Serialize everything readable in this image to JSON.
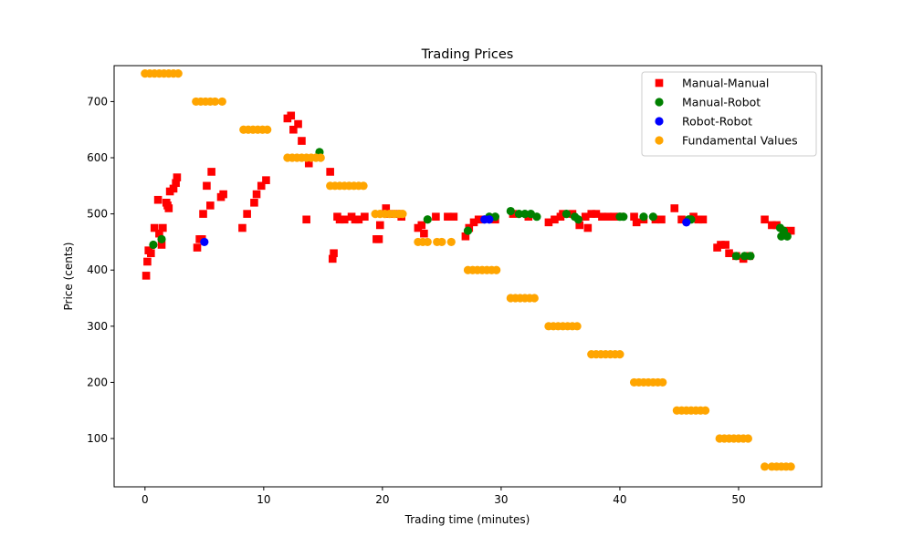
{
  "chart_data": {
    "type": "scatter",
    "title": "Trading Prices",
    "xlabel": "Trading time (minutes)",
    "ylabel": "Price (cents)",
    "xlim": [
      -2.6,
      57.0
    ],
    "ylim": [
      14,
      764
    ],
    "x_ticks": [
      0,
      10,
      20,
      30,
      40,
      50
    ],
    "y_ticks": [
      100,
      200,
      300,
      400,
      500,
      600,
      700
    ],
    "grid": false,
    "legend_position": "top-right",
    "series": [
      {
        "name": "Manual-Manual",
        "marker": "square",
        "color": "#ff0000",
        "points": [
          [
            0.1,
            390
          ],
          [
            0.2,
            415
          ],
          [
            0.3,
            435
          ],
          [
            0.5,
            430
          ],
          [
            0.8,
            475
          ],
          [
            1.1,
            525
          ],
          [
            1.2,
            465
          ],
          [
            1.4,
            445
          ],
          [
            1.5,
            475
          ],
          [
            1.8,
            520
          ],
          [
            1.9,
            515
          ],
          [
            2.0,
            510
          ],
          [
            2.1,
            540
          ],
          [
            2.4,
            545
          ],
          [
            2.6,
            555
          ],
          [
            2.7,
            565
          ],
          [
            4.4,
            440
          ],
          [
            4.6,
            455
          ],
          [
            4.8,
            455
          ],
          [
            4.9,
            500
          ],
          [
            5.2,
            550
          ],
          [
            5.5,
            515
          ],
          [
            5.6,
            575
          ],
          [
            6.4,
            530
          ],
          [
            6.6,
            535
          ],
          [
            8.2,
            475
          ],
          [
            8.6,
            500
          ],
          [
            9.2,
            520
          ],
          [
            9.4,
            535
          ],
          [
            9.8,
            550
          ],
          [
            10.2,
            560
          ],
          [
            12.0,
            670
          ],
          [
            12.3,
            675
          ],
          [
            12.5,
            650
          ],
          [
            12.9,
            660
          ],
          [
            13.2,
            630
          ],
          [
            13.6,
            490
          ],
          [
            13.8,
            590
          ],
          [
            15.6,
            575
          ],
          [
            15.8,
            420
          ],
          [
            15.9,
            430
          ],
          [
            16.2,
            495
          ],
          [
            16.4,
            490
          ],
          [
            16.8,
            490
          ],
          [
            17.4,
            495
          ],
          [
            17.7,
            490
          ],
          [
            18.0,
            490
          ],
          [
            18.5,
            495
          ],
          [
            19.5,
            455
          ],
          [
            19.7,
            455
          ],
          [
            19.8,
            480
          ],
          [
            20.3,
            510
          ],
          [
            20.6,
            500
          ],
          [
            21.3,
            500
          ],
          [
            21.6,
            495
          ],
          [
            23.0,
            475
          ],
          [
            23.3,
            480
          ],
          [
            23.5,
            465
          ],
          [
            24.5,
            495
          ],
          [
            25.5,
            495
          ],
          [
            26.0,
            495
          ],
          [
            27.0,
            460
          ],
          [
            27.3,
            475
          ],
          [
            27.7,
            485
          ],
          [
            28.1,
            490
          ],
          [
            28.3,
            490
          ],
          [
            29.5,
            490
          ],
          [
            31.0,
            500
          ],
          [
            32.3,
            495
          ],
          [
            34.0,
            485
          ],
          [
            34.5,
            490
          ],
          [
            35.0,
            495
          ],
          [
            35.2,
            500
          ],
          [
            36.0,
            500
          ],
          [
            36.6,
            480
          ],
          [
            37.1,
            495
          ],
          [
            37.3,
            475
          ],
          [
            37.6,
            500
          ],
          [
            38.0,
            500
          ],
          [
            38.5,
            495
          ],
          [
            39.0,
            495
          ],
          [
            39.5,
            495
          ],
          [
            40.0,
            495
          ],
          [
            41.2,
            495
          ],
          [
            41.4,
            485
          ],
          [
            42.0,
            490
          ],
          [
            43.0,
            490
          ],
          [
            43.5,
            490
          ],
          [
            44.6,
            510
          ],
          [
            45.2,
            490
          ],
          [
            46.2,
            495
          ],
          [
            46.6,
            490
          ],
          [
            47.0,
            490
          ],
          [
            48.2,
            440
          ],
          [
            48.5,
            445
          ],
          [
            48.9,
            445
          ],
          [
            49.2,
            430
          ],
          [
            49.8,
            425
          ],
          [
            50.4,
            420
          ],
          [
            50.9,
            425
          ],
          [
            52.2,
            490
          ],
          [
            52.8,
            480
          ],
          [
            53.2,
            480
          ],
          [
            53.8,
            470
          ],
          [
            54.4,
            470
          ]
        ]
      },
      {
        "name": "Manual-Robot",
        "marker": "circle",
        "color": "#008000",
        "points": [
          [
            0.7,
            445
          ],
          [
            1.4,
            455
          ],
          [
            14.7,
            610
          ],
          [
            23.8,
            490
          ],
          [
            27.2,
            470
          ],
          [
            29.0,
            495
          ],
          [
            29.5,
            495
          ],
          [
            30.8,
            505
          ],
          [
            31.5,
            500
          ],
          [
            32.0,
            500
          ],
          [
            32.5,
            500
          ],
          [
            33.0,
            495
          ],
          [
            35.5,
            500
          ],
          [
            36.2,
            495
          ],
          [
            36.5,
            490
          ],
          [
            40.0,
            495
          ],
          [
            40.3,
            495
          ],
          [
            42.0,
            495
          ],
          [
            42.8,
            495
          ],
          [
            45.8,
            490
          ],
          [
            46.0,
            490
          ],
          [
            49.8,
            425
          ],
          [
            50.5,
            425
          ],
          [
            51.0,
            425
          ],
          [
            53.5,
            475
          ],
          [
            53.6,
            460
          ],
          [
            53.8,
            470
          ],
          [
            54.1,
            460
          ]
        ]
      },
      {
        "name": "Robot-Robot",
        "marker": "circle",
        "color": "#0000ff",
        "points": [
          [
            5.0,
            450
          ],
          [
            28.6,
            490
          ],
          [
            29.0,
            490
          ],
          [
            45.6,
            485
          ]
        ]
      },
      {
        "name": "Fundamental Values",
        "marker": "circle",
        "color": "#ffa500",
        "points": [
          [
            0.0,
            750
          ],
          [
            0.4,
            750
          ],
          [
            0.8,
            750
          ],
          [
            1.2,
            750
          ],
          [
            1.6,
            750
          ],
          [
            2.0,
            750
          ],
          [
            2.4,
            750
          ],
          [
            2.8,
            750
          ],
          [
            4.3,
            700
          ],
          [
            4.7,
            700
          ],
          [
            5.1,
            700
          ],
          [
            5.5,
            700
          ],
          [
            5.9,
            700
          ],
          [
            6.5,
            700
          ],
          [
            8.3,
            650
          ],
          [
            8.7,
            650
          ],
          [
            9.1,
            650
          ],
          [
            9.5,
            650
          ],
          [
            9.9,
            650
          ],
          [
            10.3,
            650
          ],
          [
            12.0,
            600
          ],
          [
            12.4,
            600
          ],
          [
            12.8,
            600
          ],
          [
            13.2,
            600
          ],
          [
            13.6,
            600
          ],
          [
            14.0,
            600
          ],
          [
            14.4,
            600
          ],
          [
            14.8,
            600
          ],
          [
            15.6,
            550
          ],
          [
            16.0,
            550
          ],
          [
            16.4,
            550
          ],
          [
            16.8,
            550
          ],
          [
            17.2,
            550
          ],
          [
            17.6,
            550
          ],
          [
            18.0,
            550
          ],
          [
            18.4,
            550
          ],
          [
            19.4,
            500
          ],
          [
            19.8,
            500
          ],
          [
            20.2,
            500
          ],
          [
            20.6,
            500
          ],
          [
            21.0,
            500
          ],
          [
            21.4,
            500
          ],
          [
            21.7,
            500
          ],
          [
            23.0,
            450
          ],
          [
            23.4,
            450
          ],
          [
            23.8,
            450
          ],
          [
            24.6,
            450
          ],
          [
            25.0,
            450
          ],
          [
            25.8,
            450
          ],
          [
            27.2,
            400
          ],
          [
            27.6,
            400
          ],
          [
            28.0,
            400
          ],
          [
            28.4,
            400
          ],
          [
            28.8,
            400
          ],
          [
            29.2,
            400
          ],
          [
            29.6,
            400
          ],
          [
            30.8,
            350
          ],
          [
            31.2,
            350
          ],
          [
            31.6,
            350
          ],
          [
            32.0,
            350
          ],
          [
            32.4,
            350
          ],
          [
            32.8,
            350
          ],
          [
            34.0,
            300
          ],
          [
            34.4,
            300
          ],
          [
            34.8,
            300
          ],
          [
            35.2,
            300
          ],
          [
            35.6,
            300
          ],
          [
            36.0,
            300
          ],
          [
            36.4,
            300
          ],
          [
            37.6,
            250
          ],
          [
            38.0,
            250
          ],
          [
            38.4,
            250
          ],
          [
            38.8,
            250
          ],
          [
            39.2,
            250
          ],
          [
            39.6,
            250
          ],
          [
            40.0,
            250
          ],
          [
            41.2,
            200
          ],
          [
            41.6,
            200
          ],
          [
            42.0,
            200
          ],
          [
            42.4,
            200
          ],
          [
            42.8,
            200
          ],
          [
            43.2,
            200
          ],
          [
            43.6,
            200
          ],
          [
            44.8,
            150
          ],
          [
            45.2,
            150
          ],
          [
            45.6,
            150
          ],
          [
            46.0,
            150
          ],
          [
            46.4,
            150
          ],
          [
            46.8,
            150
          ],
          [
            47.2,
            150
          ],
          [
            48.4,
            100
          ],
          [
            48.8,
            100
          ],
          [
            49.2,
            100
          ],
          [
            49.6,
            100
          ],
          [
            50.0,
            100
          ],
          [
            50.4,
            100
          ],
          [
            50.8,
            100
          ],
          [
            52.2,
            50
          ],
          [
            52.8,
            50
          ],
          [
            53.2,
            50
          ],
          [
            53.6,
            50
          ],
          [
            54.0,
            50
          ],
          [
            54.4,
            50
          ]
        ]
      }
    ]
  }
}
